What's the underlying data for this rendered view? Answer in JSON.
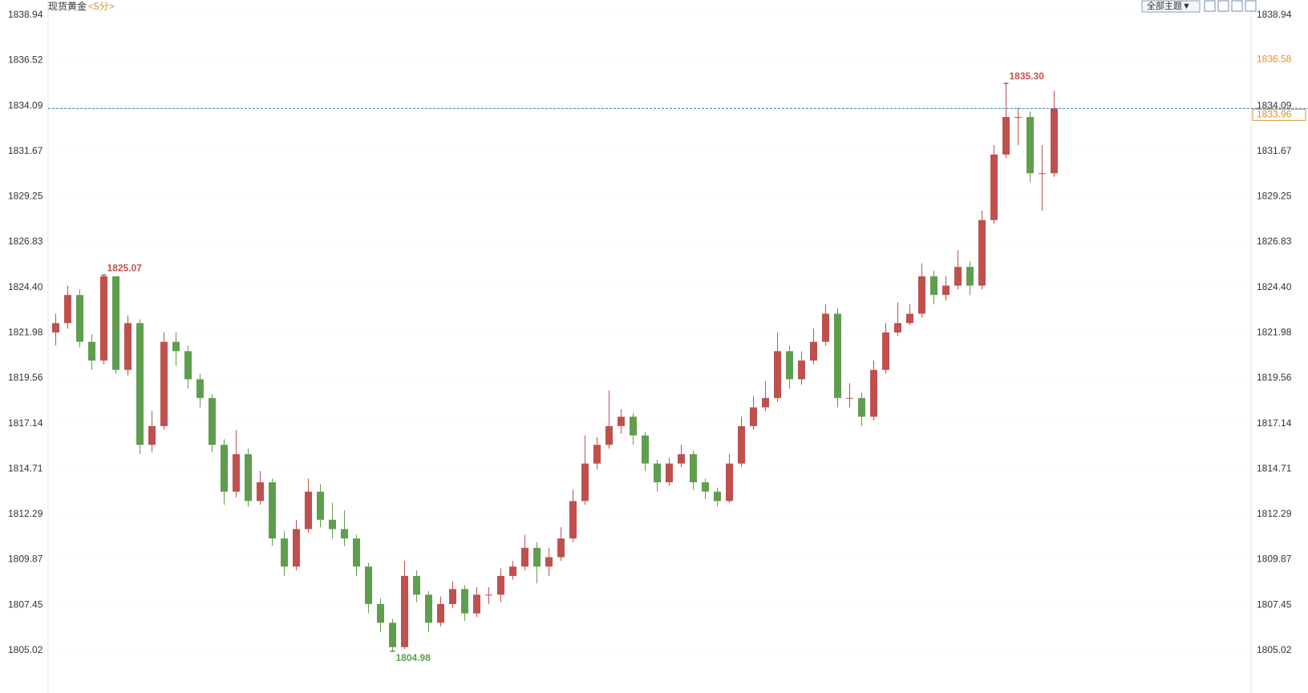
{
  "chart_data": {
    "type": "candlestick",
    "title": "现货黄金",
    "period": "<5分>",
    "theme_button": "全部主题▼",
    "ylim": [
      1802.75,
      1839.75
    ],
    "yticks": [
      1805.02,
      1807.45,
      1809.87,
      1812.29,
      1814.71,
      1817.14,
      1819.56,
      1821.98,
      {
        "value": 1824.4,
        "label": "1824.40"
      },
      1826.83,
      1829.25,
      1831.67,
      1834.09,
      1836.52,
      1838.94
    ],
    "grid": true,
    "up_color": "#c0504d",
    "down_color": "#5f9e4f",
    "last_price": 1833.96,
    "ref_price": 1836.58,
    "annotations": [
      1825.07,
      {
        "value": 1835.3,
        "label": "1835.30"
      },
      1804.98
    ],
    "open": [
      1822.0,
      1822.5,
      1824.0,
      1821.5,
      1820.5,
      1825.0,
      1820.0,
      1822.5,
      1816.0,
      1817.0,
      1821.5,
      1821.0,
      1819.5,
      1818.5,
      1816.0,
      1813.5,
      1815.5,
      1813.0,
      1814.0,
      1811.0,
      1809.5,
      1811.5,
      1813.5,
      1812.0,
      1811.5,
      1811.0,
      1809.5,
      1807.5,
      1806.5,
      1805.2,
      1809.0,
      1808.0,
      1806.5,
      1807.5,
      1808.3,
      1807.0,
      1808.0,
      1808.0,
      1809.0,
      1809.5,
      1810.5,
      1809.5,
      1810.0,
      1811.0,
      1813.0,
      1815.0,
      1816.0,
      1817.0,
      1817.5,
      1816.5,
      1815.0,
      1814.0,
      1815.0,
      1815.5,
      1814.0,
      1813.5,
      1813.0,
      1815.0,
      1817.0,
      1818.0,
      1818.5,
      1821.0,
      1819.5,
      1820.5,
      1821.5,
      1823.0,
      1818.5,
      1818.5,
      1817.5,
      1820.0,
      1822.0,
      1822.5,
      1823.0,
      1825.0,
      1824.0,
      1824.5,
      1825.5,
      1824.5,
      1828.0,
      1831.5,
      1833.5,
      1833.5,
      1830.5,
      1830.5
    ],
    "high": [
      1823.0,
      1824.5,
      1824.3,
      1821.9,
      1825.07,
      1825.0,
      1822.9,
      1822.7,
      1817.8,
      1822.0,
      1822.0,
      1821.3,
      1819.8,
      1818.7,
      1816.3,
      1816.8,
      1815.8,
      1814.6,
      1814.2,
      1811.4,
      1812.0,
      1814.2,
      1813.9,
      1812.9,
      1812.5,
      1811.2,
      1809.7,
      1807.8,
      1806.7,
      1809.8,
      1809.3,
      1808.2,
      1807.9,
      1808.7,
      1808.5,
      1808.4,
      1808.4,
      1809.4,
      1809.8,
      1811.2,
      1810.8,
      1810.5,
      1811.6,
      1813.6,
      1816.5,
      1816.4,
      1818.9,
      1817.9,
      1817.7,
      1816.7,
      1815.2,
      1815.3,
      1816.0,
      1815.7,
      1814.2,
      1813.7,
      1815.5,
      1817.5,
      1818.6,
      1819.4,
      1822.0,
      1821.3,
      1821.0,
      1822.2,
      1823.5,
      1823.3,
      1819.3,
      1818.8,
      1820.5,
      1822.5,
      1823.6,
      1823.5,
      1825.7,
      1825.3,
      1825.0,
      1826.4,
      1825.8,
      1828.5,
      1832.0,
      1835.3,
      1834.0,
      1833.8,
      1832.0,
      1834.9
    ],
    "low": [
      1821.3,
      1822.2,
      1821.2,
      1820.0,
      1820.3,
      1819.8,
      1819.7,
      1815.5,
      1815.6,
      1816.8,
      1820.2,
      1819.0,
      1818.0,
      1815.6,
      1812.8,
      1813.2,
      1812.7,
      1812.8,
      1810.6,
      1809.0,
      1809.3,
      1811.3,
      1811.6,
      1811.0,
      1810.6,
      1809.0,
      1807.0,
      1806.0,
      1804.98,
      1805.1,
      1807.6,
      1806.0,
      1806.3,
      1807.3,
      1806.6,
      1806.8,
      1807.5,
      1807.6,
      1808.8,
      1809.3,
      1808.6,
      1809.0,
      1809.8,
      1810.8,
      1812.8,
      1814.7,
      1815.8,
      1816.6,
      1816.0,
      1814.6,
      1813.5,
      1813.8,
      1814.8,
      1813.6,
      1813.1,
      1812.7,
      1812.9,
      1814.8,
      1816.8,
      1817.8,
      1818.3,
      1819.0,
      1819.2,
      1820.3,
      1821.3,
      1818.0,
      1818.0,
      1817.0,
      1817.3,
      1819.8,
      1821.8,
      1822.4,
      1822.8,
      1823.5,
      1823.7,
      1824.3,
      1824.0,
      1824.3,
      1827.8,
      1831.3,
      1832.0,
      1830.0,
      1828.5,
      1830.3
    ],
    "close": [
      1822.5,
      1824.0,
      1821.5,
      1820.5,
      1825.0,
      1820.0,
      1822.5,
      1816.0,
      1817.0,
      1821.5,
      1821.0,
      1819.5,
      1818.5,
      1816.0,
      1813.5,
      1815.5,
      1813.0,
      1814.0,
      1811.0,
      1809.5,
      1811.5,
      1813.5,
      1812.0,
      1811.5,
      1811.0,
      1809.5,
      1807.5,
      1806.5,
      1805.2,
      1809.0,
      1808.0,
      1806.5,
      1807.5,
      1808.3,
      1807.0,
      1808.0,
      1808.0,
      1809.0,
      1809.5,
      1810.5,
      1809.5,
      1810.0,
      1811.0,
      1813.0,
      1815.0,
      1816.0,
      1817.0,
      1817.5,
      1816.5,
      1815.0,
      1814.0,
      1815.0,
      1815.5,
      1814.0,
      1813.5,
      1813.0,
      1815.0,
      1817.0,
      1818.0,
      1818.5,
      1821.0,
      1819.5,
      1820.5,
      1821.5,
      1823.0,
      1818.5,
      1818.5,
      1817.5,
      1820.0,
      1822.0,
      1822.5,
      1823.0,
      1825.0,
      1824.0,
      1824.5,
      1825.5,
      1824.5,
      1828.0,
      1831.5,
      1833.5,
      1833.5,
      1830.5,
      1830.5,
      1833.96
    ]
  }
}
